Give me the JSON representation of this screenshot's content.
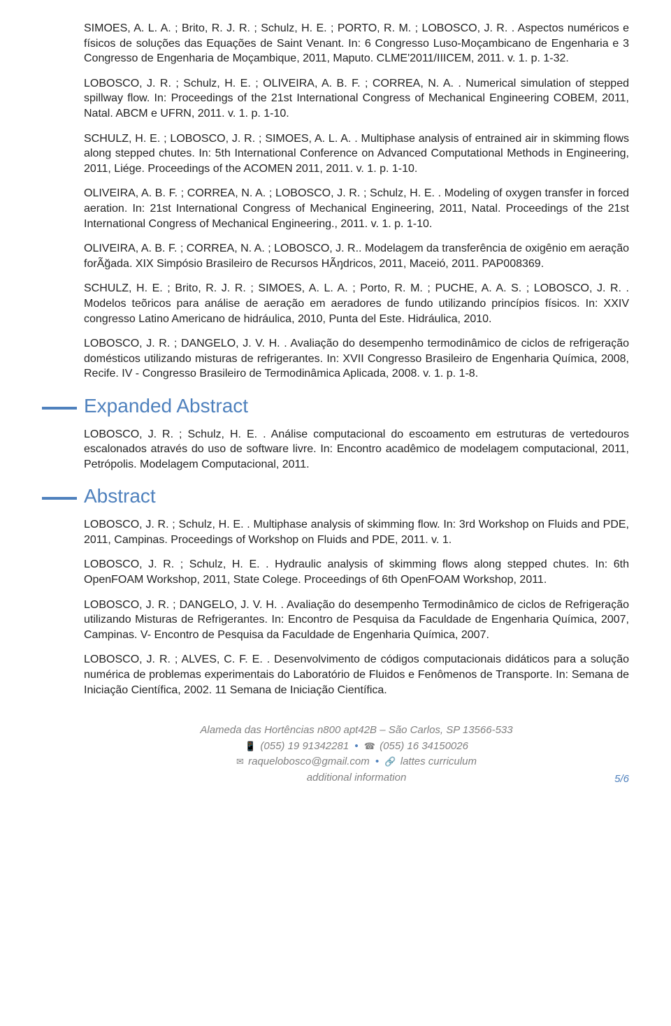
{
  "entries1": [
    "SIMOES, A. L. A. ; Brito, R. J. R. ; Schulz, H. E. ; PORTO, R. M. ; LOBOSCO, J. R. . Aspectos numéricos e físicos de soluções das Equações de Saint Venant. In: 6 Congresso Luso-Moçambicano de Engenharia e 3 Congresso de Engenharia de Moçambique, 2011, Maputo. CLME'2011/IIICEM, 2011. v. 1. p. 1-32.",
    "LOBOSCO, J. R. ; Schulz, H. E. ; OLIVEIRA, A. B. F. ; CORREA, N. A. . Numerical simulation of stepped spillway flow. In: Proceedings of the 21st International Congress of Mechanical Engineering COBEM, 2011, Natal. ABCM e UFRN, 2011. v. 1. p. 1-10.",
    "SCHULZ, H. E. ; LOBOSCO, J. R. ; SIMOES, A. L. A. . Multiphase analysis of entrained air in skimming flows along stepped chutes. In: 5th International Conference on Advanced Computational Methods in Engineering, 2011, Liége. Proceedings of the ACOMEN 2011, 2011. v. 1. p. 1-10.",
    "OLIVEIRA, A. B. F. ; CORREA, N. A. ; LOBOSCO, J. R. ; Schulz, H. E. . Modeling of oxygen transfer in forced aeration. In: 21st International Congress of Mechanical Engineering, 2011, Natal. Proceedings of the 21st International Congress of Mechanical Engineering., 2011. v. 1. p. 1-10.",
    "OLIVEIRA, A. B. F. ; CORREA, N. A. ; LOBOSCO, J. R.. Modelagem da transferência de oxigênio em aeração forÃğada. XIX Simpósio Brasileiro de Recursos HÃŋdricos, 2011, Maceió, 2011. PAP008369.",
    "SCHULZ, H. E. ; Brito, R. J. R. ; SIMOES, A. L. A. ; Porto, R. M. ; PUCHE, A. A. S. ; LOBOSCO, J. R. . Modelos teõricos para análise de aeração em aeradores de fundo utilizando princípios físicos. In: XXIV congresso Latino Americano de hidráulica, 2010, Punta del Este. Hidráulica, 2010.",
    "LOBOSCO, J. R. ; DANGELO, J. V. H. . Avaliação do desempenho termodinâmico de ciclos de refrigeração domésticos utilizando misturas de refrigerantes. In: XVII Congresso Brasileiro de Engenharia Química, 2008, Recife. IV - Congresso Brasileiro de Termodinâmica Aplicada, 2008. v. 1. p. 1-8."
  ],
  "section1": "Expanded Abstract",
  "entries2": [
    "LOBOSCO, J. R. ; Schulz, H. E. . Análise computacional do escoamento em estruturas de vertedouros escalonados através do uso de software livre. In: Encontro acadêmico de modelagem computacional, 2011, Petrópolis. Modelagem Computacional, 2011."
  ],
  "section2": "Abstract",
  "entries3": [
    "LOBOSCO, J. R. ; Schulz, H. E. . Multiphase analysis of skimming flow. In: 3rd Workshop on Fluids and PDE, 2011, Campinas. Proceedings of Workshop on Fluids and PDE, 2011. v. 1.",
    "LOBOSCO, J. R. ; Schulz, H. E. . Hydraulic analysis of skimming flows along stepped chutes. In: 6th OpenFOAM Workshop, 2011, State Colege. Proceedings of 6th OpenFOAM Workshop, 2011.",
    "LOBOSCO, J. R. ; DANGELO, J. V. H. . Avaliação do desempenho Termodinâmico de ciclos de Refrigeração utilizando Misturas de Refrigerantes. In: Encontro de Pesquisa da Faculdade de Engenharia Química, 2007, Campinas. V- Encontro de Pesquisa da Faculdade de Engenharia Química, 2007.",
    "LOBOSCO, J. R. ; ALVES, C. F. E. . Desenvolvimento de códigos computacionais didáticos para a solução numérica de problemas experimentais do Laboratório de Fluidos e Fenômenos de Transporte. In: Semana de Iniciação Científica, 2002. 11 Semana de Iniciação Científica."
  ],
  "footer": {
    "address": "Alameda das Hortências n800 apt42B – São Carlos, SP 13566-533",
    "mobile": "(055) 19 91342281",
    "phone": "(055) 16 34150026",
    "email": "raquelobosco@gmail.com",
    "link": "lattes curriculum",
    "extra": "additional information"
  },
  "pagenum": "5/6"
}
